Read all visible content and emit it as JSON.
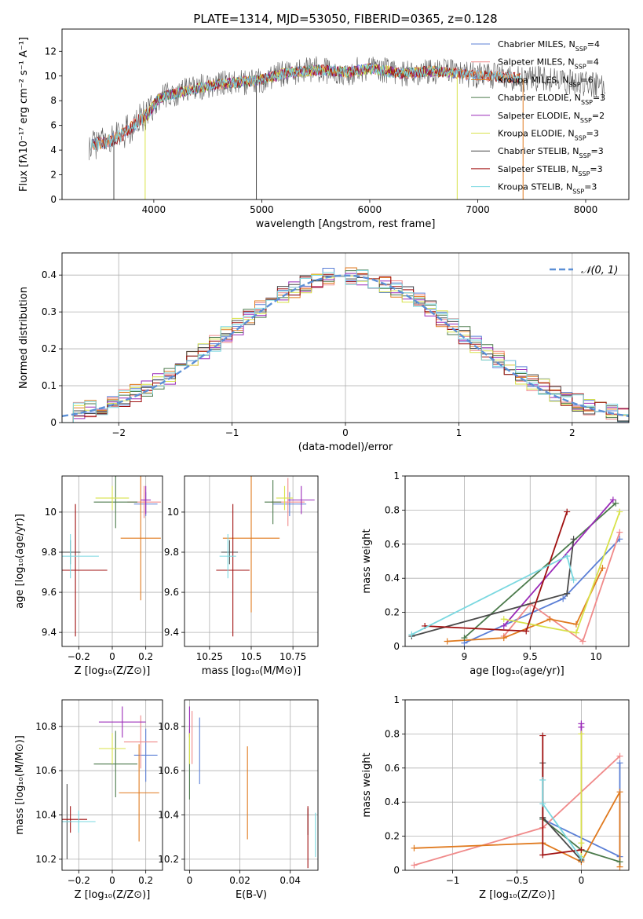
{
  "title": "PLATE=1314, MJD=53050, FIBERID=0365, z=0.128",
  "colors": {
    "Chabrier MILES": "#5b7fd6",
    "Salpeter MILES": "#f08a8a",
    "Kroupa MILES": "#e07a1f",
    "Chabrier ELODIE": "#4b7a4b",
    "Salpeter ELODIE": "#9a2ab8",
    "Kroupa ELODIE": "#d8e24a",
    "Chabrier STELIB": "#4a4a4a",
    "Salpeter STELIB": "#a01010",
    "Kroupa STELIB": "#7ad8e0",
    "gauss": "#5b8fd6"
  },
  "chart_data": [
    {
      "id": "spectrum",
      "type": "line",
      "xlabel": "wavelength [Angstrom, rest frame]",
      "ylabel": "Flux [fλ10⁻¹⁷ erg cm⁻² s⁻¹ A⁻¹]",
      "xlim": [
        3150,
        8400
      ],
      "ylim": [
        0,
        13.8
      ],
      "xticks": [
        4000,
        5000,
        6000,
        7000,
        8000
      ],
      "yticks": [
        0,
        2,
        4,
        6,
        8,
        10,
        12
      ],
      "grid": false,
      "legend_placement": "upper-right",
      "continuum": {
        "x": [
          3400,
          3550,
          3700,
          3850,
          3950,
          4050,
          4150,
          4300,
          4500,
          4800,
          5000,
          5200,
          5500,
          5800,
          6000,
          6300,
          6600,
          6900,
          7100,
          7400,
          7700,
          8000,
          8180
        ],
        "y": [
          4.5,
          4.6,
          5.2,
          6.3,
          7.0,
          8.2,
          8.5,
          8.8,
          9.2,
          9.5,
          9.7,
          10.2,
          10.5,
          10.3,
          10.6,
          10.2,
          10.4,
          10.1,
          10.0,
          9.8,
          9.7,
          9.3,
          9.1
        ]
      },
      "series": [
        {
          "name": "Chabrier MILES, N",
          "sub": "SSP",
          "tail": "=4",
          "x_range": [
            3420,
            7350
          ]
        },
        {
          "name": "Salpeter MILES, N",
          "sub": "SSP",
          "tail": "=4",
          "x_range": [
            3420,
            7350
          ]
        },
        {
          "name": "Kroupa MILES, N",
          "sub": "SSP",
          "tail": "=6",
          "x_range": [
            3420,
            7400
          ]
        },
        {
          "name": "Chabrier ELODIE, N",
          "sub": "SSP",
          "tail": "=3",
          "x_range": [
            3900,
            6800
          ]
        },
        {
          "name": "Salpeter ELODIE, N",
          "sub": "SSP",
          "tail": "=2",
          "x_range": [
            3900,
            6800
          ]
        },
        {
          "name": "Kroupa ELODIE, N",
          "sub": "SSP",
          "tail": "=3",
          "x_range": [
            3900,
            6800
          ]
        },
        {
          "name": "Chabrier STELIB, N",
          "sub": "SSP",
          "tail": "=3",
          "x_range": [
            3400,
            8180
          ]
        },
        {
          "name": "Salpeter STELIB, N",
          "sub": "SSP",
          "tail": "=3",
          "x_range": [
            3420,
            7400
          ]
        },
        {
          "name": "Kroupa STELIB, N",
          "sub": "SSP",
          "tail": "=3",
          "x_range": [
            3420,
            7400
          ]
        }
      ]
    },
    {
      "id": "residuals",
      "type": "line",
      "xlabel": "(data-model)/error",
      "ylabel": "Normed distribution",
      "xlim": [
        -2.5,
        2.5
      ],
      "ylim": [
        0,
        0.46
      ],
      "xticks": [
        -2,
        -1,
        0,
        1,
        2
      ],
      "yticks": [
        0.0,
        0.1,
        0.2,
        0.3,
        0.4
      ],
      "grid": true,
      "legend_placement": "upper-right",
      "legend": "𝒩(0, 1)",
      "bin_width": 0.1
    },
    {
      "id": "age-vs-Z",
      "type": "scatter",
      "xlabel": "Z [log₁₀(Z/Z⊙)]",
      "ylabel": "age  [log₁₀(age/yr)]",
      "xlim": [
        -0.3,
        0.3
      ],
      "ylim": [
        9.33,
        10.18
      ],
      "xticks": [
        -0.2,
        0.0,
        0.2
      ],
      "yticks": [
        9.4,
        9.6,
        9.8,
        10.0
      ],
      "grid": true,
      "points": [
        {
          "s": "Chabrier MILES",
          "x": 0.2,
          "xe": 0.07,
          "y": 10.04,
          "ye": 0.06
        },
        {
          "s": "Salpeter MILES",
          "x": 0.19,
          "xe": 0.1,
          "y": 10.05,
          "ye": 0.08
        },
        {
          "s": "Kroupa MILES",
          "x": 0.17,
          "xe": 0.12,
          "y": 9.87,
          "ye": 0.31
        },
        {
          "s": "Chabrier ELODIE",
          "x": 0.02,
          "xe": 0.13,
          "y": 10.05,
          "ye": 0.13
        },
        {
          "s": "Salpeter ELODIE",
          "x": 0.2,
          "xe": 0.03,
          "y": 10.06,
          "ye": 0.07
        },
        {
          "s": "Kroupa ELODIE",
          "x": 0.0,
          "xe": 0.1,
          "y": 10.07,
          "ye": 0.06
        },
        {
          "s": "Chabrier STELIB",
          "x": -0.25,
          "xe": 0.06,
          "y": 9.8,
          "ye": 0.06
        },
        {
          "s": "Salpeter STELIB",
          "x": -0.22,
          "xe": 0.19,
          "y": 9.71,
          "ye": 0.33
        },
        {
          "s": "Kroupa STELIB",
          "x": -0.25,
          "xe": 0.17,
          "y": 9.78,
          "ye": 0.11
        }
      ]
    },
    {
      "id": "age-vs-mass",
      "type": "scatter",
      "xlabel": "mass [log₁₀(M/M⊙)]",
      "ylabel": "",
      "xlim": [
        10.1,
        10.9
      ],
      "ylim": [
        9.33,
        10.18
      ],
      "xticks": [
        10.25,
        10.5,
        10.75
      ],
      "yticks": [
        9.4,
        9.6,
        9.8,
        10.0
      ],
      "grid": true,
      "points": [
        {
          "s": "Chabrier MILES",
          "x": 10.73,
          "xe": 0.1,
          "y": 10.04,
          "ye": 0.06
        },
        {
          "s": "Salpeter MILES",
          "x": 10.72,
          "xe": 0.1,
          "y": 10.05,
          "ye": 0.12
        },
        {
          "s": "Kroupa MILES",
          "x": 10.5,
          "xe": 0.17,
          "y": 9.87,
          "ye": 0.37
        },
        {
          "s": "Chabrier ELODIE",
          "x": 10.63,
          "xe": 0.05,
          "y": 10.05,
          "ye": 0.11
        },
        {
          "s": "Salpeter ELODIE",
          "x": 10.8,
          "xe": 0.08,
          "y": 10.06,
          "ye": 0.07
        },
        {
          "s": "Kroupa ELODIE",
          "x": 10.7,
          "xe": 0.05,
          "y": 10.07,
          "ye": 0.06
        },
        {
          "s": "Chabrier STELIB",
          "x": 10.37,
          "xe": 0.05,
          "y": 9.8,
          "ye": 0.06
        },
        {
          "s": "Salpeter STELIB",
          "x": 10.39,
          "xe": 0.1,
          "y": 9.71,
          "ye": 0.33
        },
        {
          "s": "Kroupa STELIB",
          "x": 10.36,
          "xe": 0.05,
          "y": 9.78,
          "ye": 0.11
        }
      ]
    },
    {
      "id": "weight-vs-age",
      "type": "line",
      "xlabel": "age  [log₁₀(age/yr)]",
      "ylabel": "mass weight",
      "xlim": [
        8.55,
        10.25
      ],
      "ylim": [
        0,
        1.0
      ],
      "xticks": [
        9.0,
        9.5,
        10.0
      ],
      "yticks": [
        0.0,
        0.2,
        0.4,
        0.6,
        0.8,
        1.0
      ],
      "grid": true,
      "series": [
        {
          "s": "Chabrier MILES",
          "x": [
            9.0,
            9.75,
            10.18
          ],
          "y": [
            0.02,
            0.28,
            0.63
          ]
        },
        {
          "s": "Salpeter MILES",
          "x": [
            9.3,
            9.5,
            9.9,
            10.18
          ],
          "y": [
            0.06,
            0.25,
            0.03,
            0.67
          ]
        },
        {
          "s": "Kroupa MILES",
          "x": [
            8.87,
            9.3,
            9.65,
            9.85,
            10.05
          ],
          "y": [
            0.03,
            0.05,
            0.16,
            0.13,
            0.46
          ]
        },
        {
          "s": "Chabrier ELODIE",
          "x": [
            9.0,
            10.15
          ],
          "y": [
            0.05,
            0.84
          ]
        },
        {
          "s": "Salpeter ELODIE",
          "x": [
            9.3,
            10.13
          ],
          "y": [
            0.12,
            0.86
          ]
        },
        {
          "s": "Kroupa ELODIE",
          "x": [
            9.3,
            9.85,
            10.18
          ],
          "y": [
            0.16,
            0.08,
            0.79
          ]
        },
        {
          "s": "Chabrier STELIB",
          "x": [
            8.6,
            9.78,
            9.83
          ],
          "y": [
            0.06,
            0.31,
            0.63
          ]
        },
        {
          "s": "Salpeter STELIB",
          "x": [
            8.7,
            9.47,
            9.78
          ],
          "y": [
            0.12,
            0.09,
            0.79
          ]
        },
        {
          "s": "Kroupa STELIB",
          "x": [
            8.6,
            9.78,
            9.83
          ],
          "y": [
            0.07,
            0.53,
            0.39
          ]
        }
      ]
    },
    {
      "id": "mass-vs-Z",
      "type": "scatter",
      "xlabel": "Z [log₁₀(Z/Z⊙)]",
      "ylabel": "mass [log₁₀(M/M⊙)]",
      "xlim": [
        -0.3,
        0.3
      ],
      "ylim": [
        10.15,
        10.92
      ],
      "xticks": [
        -0.2,
        0.0,
        0.2
      ],
      "yticks": [
        10.2,
        10.4,
        10.6,
        10.8
      ],
      "grid": true,
      "points": [
        {
          "s": "Chabrier MILES",
          "x": 0.2,
          "xe": 0.07,
          "y": 10.67,
          "ye": 0.12
        },
        {
          "s": "Salpeter MILES",
          "x": 0.17,
          "xe": 0.1,
          "y": 10.73,
          "ye": 0.12
        },
        {
          "s": "Kroupa MILES",
          "x": 0.16,
          "xe": 0.12,
          "y": 10.5,
          "ye": 0.22
        },
        {
          "s": "Chabrier ELODIE",
          "x": 0.02,
          "xe": 0.13,
          "y": 10.63,
          "ye": 0.15
        },
        {
          "s": "Salpeter ELODIE",
          "x": 0.06,
          "xe": 0.14,
          "y": 10.82,
          "ye": 0.07
        },
        {
          "s": "Kroupa ELODIE",
          "x": 0.0,
          "xe": 0.08,
          "y": 10.7,
          "ye": 0.07
        },
        {
          "s": "Chabrier STELIB",
          "x": -0.27,
          "xe": 0.03,
          "y": 10.37,
          "ye": 0.17
        },
        {
          "s": "Salpeter STELIB",
          "x": -0.25,
          "xe": 0.1,
          "y": 10.38,
          "ye": 0.06
        },
        {
          "s": "Kroupa STELIB",
          "x": -0.2,
          "xe": 0.1,
          "y": 10.37,
          "ye": 0.05
        }
      ]
    },
    {
      "id": "mass-vs-ebv",
      "type": "scatter",
      "xlabel": "E(B-V)",
      "ylabel": "",
      "xlim": [
        -0.002,
        0.051
      ],
      "ylim": [
        10.15,
        10.92
      ],
      "xticks": [
        0.0,
        0.02,
        0.04
      ],
      "yticks": [
        10.2,
        10.4,
        10.6,
        10.8
      ],
      "grid": true,
      "points": [
        {
          "s": "Chabrier MILES",
          "x": 0.004,
          "xe": 0,
          "y": 10.69,
          "ye": 0.15
        },
        {
          "s": "Salpeter MILES",
          "x": 0.001,
          "xe": 0,
          "y": 10.75,
          "ye": 0.12
        },
        {
          "s": "Kroupa MILES",
          "x": 0.023,
          "xe": 0,
          "y": 10.5,
          "ye": 0.21
        },
        {
          "s": "Chabrier ELODIE",
          "x": 0.0,
          "xe": 0,
          "y": 10.63,
          "ye": 0.16
        },
        {
          "s": "Salpeter ELODIE",
          "x": 0.0,
          "xe": 0,
          "y": 10.82,
          "ye": 0.07
        },
        {
          "s": "Kroupa ELODIE",
          "x": 0.0,
          "xe": 0,
          "y": 10.7,
          "ye": 0.07
        },
        {
          "s": "Chabrier STELIB",
          "x": 0.047,
          "xe": 0,
          "y": 10.37,
          "ye": 0.06
        },
        {
          "s": "Salpeter STELIB",
          "x": 0.047,
          "xe": 0,
          "y": 10.3,
          "ye": 0.14
        },
        {
          "s": "Kroupa STELIB",
          "x": 0.05,
          "xe": 0,
          "y": 10.31,
          "ye": 0.1
        }
      ]
    },
    {
      "id": "weight-vs-Z",
      "type": "line",
      "xlabel": "Z [log₁₀(Z/Z⊙)]",
      "ylabel": "mass weight",
      "xlim": [
        -1.37,
        0.37
      ],
      "ylim": [
        0,
        1.0
      ],
      "xticks": [
        -1.0,
        -0.5,
        0.0
      ],
      "yticks": [
        0.0,
        0.2,
        0.4,
        0.6,
        0.8,
        1.0
      ],
      "grid": true,
      "series": [
        {
          "s": "Chabrier MILES",
          "x": [
            -0.3,
            0.3,
            0.3
          ],
          "y": [
            0.3,
            0.08,
            0.63
          ]
        },
        {
          "s": "Salpeter MILES",
          "x": [
            -1.3,
            -0.3,
            0.3
          ],
          "y": [
            0.03,
            0.25,
            0.67
          ]
        },
        {
          "s": "Kroupa MILES",
          "x": [
            -1.3,
            -0.3,
            0.0,
            0.3,
            0.3
          ],
          "y": [
            0.13,
            0.16,
            0.05,
            0.46,
            0.02
          ]
        },
        {
          "s": "Chabrier ELODIE",
          "x": [
            -0.3,
            0.0,
            0.3
          ],
          "y": [
            0.3,
            0.12,
            0.05
          ]
        },
        {
          "s": "Salpeter ELODIE",
          "x": [
            0.0,
            0.0,
            0.0
          ],
          "y": [
            0.12,
            0.86,
            0.84
          ]
        },
        {
          "s": "Kroupa ELODIE",
          "x": [
            0.0,
            0.0,
            0.0
          ],
          "y": [
            0.08,
            0.8,
            0.16
          ]
        },
        {
          "s": "Chabrier STELIB",
          "x": [
            -0.3,
            -0.3,
            0.0
          ],
          "y": [
            0.63,
            0.31,
            0.06
          ]
        },
        {
          "s": "Salpeter STELIB",
          "x": [
            -0.3,
            -0.3,
            0.0
          ],
          "y": [
            0.79,
            0.09,
            0.12
          ]
        },
        {
          "s": "Kroupa STELIB",
          "x": [
            -0.3,
            -0.3,
            0.0
          ],
          "y": [
            0.53,
            0.39,
            0.07
          ]
        }
      ]
    }
  ]
}
